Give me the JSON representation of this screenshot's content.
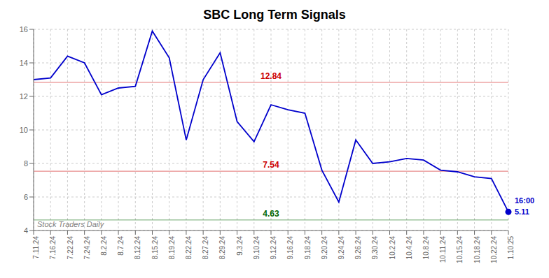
{
  "chart_data": {
    "type": "line",
    "title": "SBC Long Term Signals",
    "categories": [
      "7.11.24",
      "7.16.24",
      "7.22.24",
      "7.24.24",
      "8.2.24",
      "8.7.24",
      "8.12.24",
      "8.15.24",
      "8.19.24",
      "8.22.24",
      "8.27.24",
      "8.29.24",
      "9.3.24",
      "9.10.24",
      "9.12.24",
      "9.16.24",
      "9.18.24",
      "9.20.24",
      "9.24.24",
      "9.26.24",
      "9.30.24",
      "10.2.24",
      "10.4.24",
      "10.8.24",
      "10.11.24",
      "10.15.24",
      "10.18.24",
      "10.22.24",
      "1.10.25"
    ],
    "values": [
      13.0,
      13.1,
      14.4,
      14.0,
      12.1,
      12.5,
      12.6,
      15.9,
      14.3,
      9.4,
      13.0,
      14.6,
      10.5,
      9.3,
      11.5,
      11.2,
      11.0,
      7.6,
      5.7,
      9.4,
      8.0,
      8.1,
      8.3,
      8.2,
      7.6,
      7.5,
      7.2,
      7.1,
      5.11
    ],
    "color": "#0000cc",
    "ylim": [
      4,
      16
    ],
    "yticks": [
      4,
      6,
      8,
      10,
      12,
      14,
      16
    ],
    "grid": true,
    "reference_lines": [
      {
        "value": 12.84,
        "label": "12.84",
        "color": "#cc0000"
      },
      {
        "value": 7.54,
        "label": "7.54",
        "color": "#cc0000"
      },
      {
        "value": 4.63,
        "label": "4.63",
        "color": "#006600"
      }
    ],
    "end_labels": [
      "16:00",
      "5.11"
    ],
    "watermark": "Stock Traders Daily"
  }
}
